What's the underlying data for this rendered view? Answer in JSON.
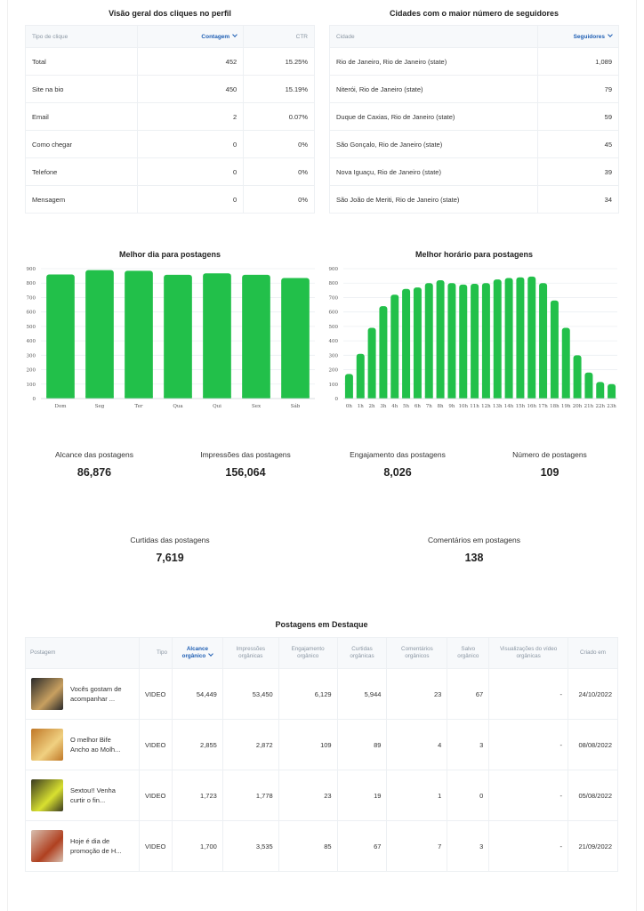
{
  "clicks": {
    "title": "Visão geral dos cliques no perfil",
    "headers": [
      "Tipo de clique",
      "Contagem",
      "CTR"
    ],
    "rows": [
      [
        "Total",
        "452",
        "15.25%"
      ],
      [
        "Site na bio",
        "450",
        "15.19%"
      ],
      [
        "Email",
        "2",
        "0.07%"
      ],
      [
        "Como chegar",
        "0",
        "0%"
      ],
      [
        "Telefone",
        "0",
        "0%"
      ],
      [
        "Mensagem",
        "0",
        "0%"
      ]
    ]
  },
  "cities": {
    "title": "Cidades com o maior número de seguidores",
    "headers": [
      "Cidade",
      "Seguidores"
    ],
    "rows": [
      [
        "Rio de Janeiro, Rio de Janeiro (state)",
        "1,089"
      ],
      [
        "Niterói, Rio de Janeiro (state)",
        "79"
      ],
      [
        "Duque de Caxias, Rio de Janeiro (state)",
        "59"
      ],
      [
        "São Gonçalo, Rio de Janeiro (state)",
        "45"
      ],
      [
        "Nova Iguaçu, Rio de Janeiro (state)",
        "39"
      ],
      [
        "São João de Meriti, Rio de Janeiro (state)",
        "34"
      ]
    ]
  },
  "chart_data": [
    {
      "type": "bar",
      "title": "Melhor dia para postagens",
      "categories": [
        "Dom",
        "Seg",
        "Ter",
        "Qua",
        "Qui",
        "Sex",
        "Sáb"
      ],
      "values": [
        860,
        890,
        885,
        858,
        868,
        858,
        835
      ],
      "ylim": [
        0,
        900
      ],
      "yticks": [
        0,
        100,
        200,
        300,
        400,
        500,
        600,
        700,
        800,
        900
      ],
      "color": "#22c04a",
      "grid": true
    },
    {
      "type": "bar",
      "title": "Melhor horário para postagens",
      "categories": [
        "0h",
        "1h",
        "2h",
        "3h",
        "4h",
        "5h",
        "6h",
        "7h",
        "8h",
        "9h",
        "10h",
        "11h",
        "12h",
        "13h",
        "14h",
        "15h",
        "16h",
        "17h",
        "18h",
        "19h",
        "20h",
        "21h",
        "22h",
        "23h"
      ],
      "values": [
        170,
        310,
        490,
        640,
        720,
        760,
        770,
        800,
        820,
        800,
        790,
        795,
        800,
        825,
        835,
        840,
        845,
        800,
        680,
        490,
        300,
        180,
        115,
        100
      ],
      "ylim": [
        0,
        900
      ],
      "yticks": [
        0,
        100,
        200,
        300,
        400,
        500,
        600,
        700,
        800,
        900
      ],
      "color": "#22c04a",
      "grid": true
    }
  ],
  "metrics": {
    "alcance": {
      "label": "Alcance das postagens",
      "value": "86,876"
    },
    "impressoes": {
      "label": "Impressões das postagens",
      "value": "156,064"
    },
    "engajamento": {
      "label": "Engajamento das postagens",
      "value": "8,026"
    },
    "numero": {
      "label": "Número de postagens",
      "value": "109"
    },
    "curtidas": {
      "label": "Curtidas das postagens",
      "value": "7,619"
    },
    "comentarios": {
      "label": "Comentários em postagens",
      "value": "138"
    }
  },
  "posts": {
    "title": "Postagens em Destaque",
    "headers": [
      "Postagem",
      "Tipo",
      "Alcance orgânico",
      "Impressões orgânicas",
      "Engajamento orgânico",
      "Curtidas orgânicas",
      "Comentários orgânicos",
      "Salvo orgânico",
      "Visualizações do vídeo orgânicas",
      "Criado em"
    ],
    "rows": [
      {
        "caption": "Vocês gostam de acompanhar ...",
        "tipo": "VIDEO",
        "alcance": "54,449",
        "impressoes": "53,450",
        "engajamento": "6,129",
        "curtidas": "5,944",
        "comentarios": "23",
        "salvo": "67",
        "visualizacoes": "-",
        "criado": "24/10/2022",
        "thumb_colors": [
          "#2a2a2a",
          "#c8a060"
        ]
      },
      {
        "caption": "O melhor Bife Ancho ao Molh...",
        "tipo": "VIDEO",
        "alcance": "2,855",
        "impressoes": "2,872",
        "engajamento": "109",
        "curtidas": "89",
        "comentarios": "4",
        "salvo": "3",
        "visualizacoes": "-",
        "criado": "08/08/2022",
        "thumb_colors": [
          "#c07828",
          "#f0d080"
        ]
      },
      {
        "caption": "Sextou!! Venha curtir o fin...",
        "tipo": "VIDEO",
        "alcance": "1,723",
        "impressoes": "1,778",
        "engajamento": "23",
        "curtidas": "19",
        "comentarios": "1",
        "salvo": "0",
        "visualizacoes": "-",
        "criado": "05/08/2022",
        "thumb_colors": [
          "#3a3a20",
          "#d8e030"
        ]
      },
      {
        "caption": "Hoje é dia de promoção de H...",
        "tipo": "VIDEO",
        "alcance": "1,700",
        "impressoes": "3,535",
        "engajamento": "85",
        "curtidas": "67",
        "comentarios": "7",
        "salvo": "3",
        "visualizacoes": "-",
        "criado": "21/09/2022",
        "thumb_colors": [
          "#d8c0b0",
          "#b04020"
        ]
      }
    ]
  }
}
